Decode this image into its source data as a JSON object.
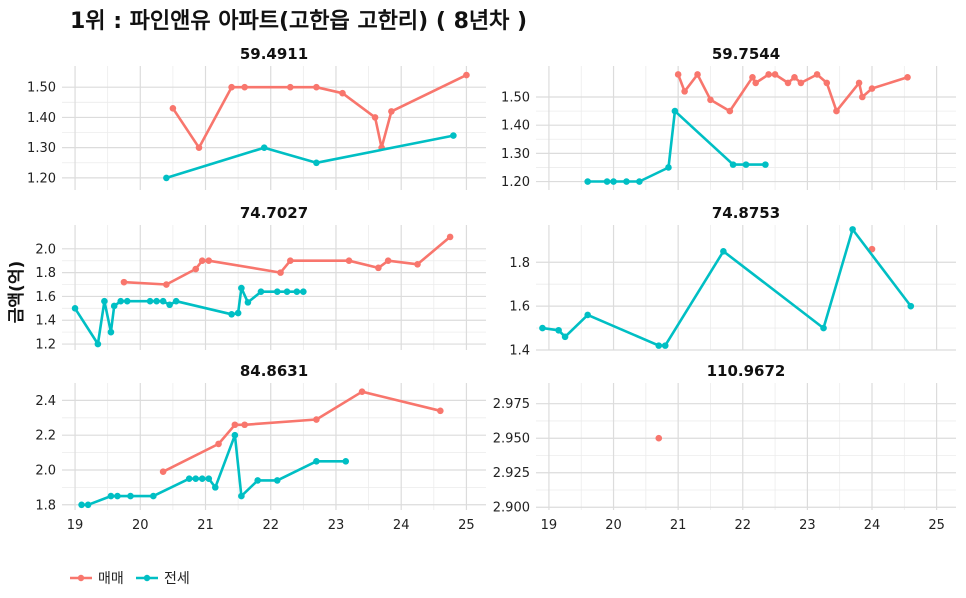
{
  "title": "1위 : 파인앤유 아파트(고한읍 고한리) ( 8년차 )",
  "ylabel": "금액(억)",
  "legend": [
    {
      "label": "매매",
      "color": "#F8766D"
    },
    {
      "label": "전세",
      "color": "#00BFC4"
    }
  ],
  "chart_data": {
    "type": "line",
    "x_range": [
      18.8,
      25.3
    ],
    "x_ticks": [
      19,
      20,
      21,
      22,
      23,
      24,
      25
    ],
    "panels": [
      {
        "title": "59.4911",
        "y_range": [
          1.16,
          1.57
        ],
        "y_ticks": [
          1.2,
          1.3,
          1.4,
          1.5
        ],
        "y_tick_labels": [
          "1.20",
          "1.30",
          "1.40",
          "1.50"
        ],
        "show_x_ticks": false,
        "series": [
          {
            "name": "매매",
            "points": [
              [
                20.5,
                1.43
              ],
              [
                20.9,
                1.3
              ],
              [
                21.4,
                1.5
              ],
              [
                21.6,
                1.5
              ],
              [
                22.3,
                1.5
              ],
              [
                22.7,
                1.5
              ],
              [
                23.1,
                1.48
              ],
              [
                23.6,
                1.4
              ],
              [
                23.7,
                1.3
              ],
              [
                23.85,
                1.42
              ],
              [
                25.0,
                1.54
              ]
            ]
          },
          {
            "name": "전세",
            "points": [
              [
                20.4,
                1.2
              ],
              [
                21.9,
                1.3
              ],
              [
                22.7,
                1.25
              ],
              [
                24.8,
                1.34
              ]
            ]
          }
        ]
      },
      {
        "title": "59.7544",
        "y_range": [
          1.17,
          1.61
        ],
        "y_ticks": [
          1.2,
          1.3,
          1.4,
          1.5
        ],
        "y_tick_labels": [
          "1.20",
          "1.30",
          "1.40",
          "1.50"
        ],
        "show_x_ticks": false,
        "series": [
          {
            "name": "매매",
            "points": [
              [
                21.0,
                1.58
              ],
              [
                21.1,
                1.52
              ],
              [
                21.3,
                1.58
              ],
              [
                21.5,
                1.49
              ],
              [
                21.8,
                1.45
              ],
              [
                22.15,
                1.57
              ],
              [
                22.2,
                1.55
              ],
              [
                22.4,
                1.58
              ],
              [
                22.5,
                1.58
              ],
              [
                22.7,
                1.55
              ],
              [
                22.8,
                1.57
              ],
              [
                22.9,
                1.55
              ],
              [
                23.15,
                1.58
              ],
              [
                23.3,
                1.55
              ],
              [
                23.45,
                1.45
              ],
              [
                23.8,
                1.55
              ],
              [
                23.85,
                1.5
              ],
              [
                24.0,
                1.53
              ],
              [
                24.55,
                1.57
              ]
            ]
          },
          {
            "name": "전세",
            "points": [
              [
                19.6,
                1.2
              ],
              [
                19.9,
                1.2
              ],
              [
                20.0,
                1.2
              ],
              [
                20.2,
                1.2
              ],
              [
                20.4,
                1.2
              ],
              [
                20.85,
                1.25
              ],
              [
                20.95,
                1.45
              ],
              [
                21.85,
                1.26
              ],
              [
                22.05,
                1.26
              ],
              [
                22.35,
                1.26
              ]
            ]
          }
        ]
      },
      {
        "title": "74.7027",
        "y_range": [
          1.15,
          2.2
        ],
        "y_ticks": [
          1.2,
          1.4,
          1.6,
          1.8,
          2.0
        ],
        "y_tick_labels": [
          "1.2",
          "1.4",
          "1.6",
          "1.8",
          "2.0"
        ],
        "show_x_ticks": false,
        "series": [
          {
            "name": "매매",
            "points": [
              [
                19.75,
                1.72
              ],
              [
                20.4,
                1.7
              ],
              [
                20.85,
                1.83
              ],
              [
                20.95,
                1.9
              ],
              [
                21.05,
                1.9
              ],
              [
                22.15,
                1.8
              ],
              [
                22.3,
                1.9
              ],
              [
                23.2,
                1.9
              ],
              [
                23.65,
                1.84
              ],
              [
                23.8,
                1.9
              ],
              [
                24.25,
                1.87
              ],
              [
                24.75,
                2.1
              ]
            ]
          },
          {
            "name": "전세",
            "points": [
              [
                19.0,
                1.5
              ],
              [
                19.35,
                1.2
              ],
              [
                19.45,
                1.56
              ],
              [
                19.55,
                1.3
              ],
              [
                19.6,
                1.52
              ],
              [
                19.7,
                1.56
              ],
              [
                19.8,
                1.56
              ],
              [
                20.15,
                1.56
              ],
              [
                20.25,
                1.56
              ],
              [
                20.35,
                1.56
              ],
              [
                20.45,
                1.53
              ],
              [
                20.55,
                1.56
              ],
              [
                21.4,
                1.45
              ],
              [
                21.5,
                1.46
              ],
              [
                21.55,
                1.67
              ],
              [
                21.65,
                1.55
              ],
              [
                21.85,
                1.64
              ],
              [
                22.1,
                1.64
              ],
              [
                22.25,
                1.64
              ],
              [
                22.4,
                1.64
              ],
              [
                22.5,
                1.64
              ]
            ]
          }
        ]
      },
      {
        "title": "74.8753",
        "y_range": [
          1.4,
          1.97
        ],
        "y_ticks": [
          1.4,
          1.6,
          1.8
        ],
        "y_tick_labels": [
          "1.4",
          "1.6",
          "1.8"
        ],
        "show_x_ticks": false,
        "series": [
          {
            "name": "매매",
            "points": [
              [
                24.0,
                1.86
              ]
            ]
          },
          {
            "name": "전세",
            "points": [
              [
                18.9,
                1.5
              ],
              [
                19.15,
                1.49
              ],
              [
                19.25,
                1.46
              ],
              [
                19.6,
                1.56
              ],
              [
                20.7,
                1.42
              ],
              [
                20.8,
                1.42
              ],
              [
                21.7,
                1.85
              ],
              [
                23.25,
                1.5
              ],
              [
                23.7,
                1.95
              ],
              [
                24.6,
                1.6
              ]
            ]
          }
        ]
      },
      {
        "title": "84.8631",
        "y_range": [
          1.77,
          2.5
        ],
        "y_ticks": [
          1.8,
          2.0,
          2.2,
          2.4
        ],
        "y_tick_labels": [
          "1.8",
          "2.0",
          "2.2",
          "2.4"
        ],
        "show_x_ticks": true,
        "series": [
          {
            "name": "매매",
            "points": [
              [
                20.35,
                1.99
              ],
              [
                21.2,
                2.15
              ],
              [
                21.45,
                2.26
              ],
              [
                21.6,
                2.26
              ],
              [
                22.7,
                2.29
              ],
              [
                23.4,
                2.45
              ],
              [
                24.6,
                2.34
              ]
            ]
          },
          {
            "name": "전세",
            "points": [
              [
                19.1,
                1.8
              ],
              [
                19.2,
                1.8
              ],
              [
                19.55,
                1.85
              ],
              [
                19.65,
                1.85
              ],
              [
                19.85,
                1.85
              ],
              [
                20.2,
                1.85
              ],
              [
                20.75,
                1.95
              ],
              [
                20.85,
                1.95
              ],
              [
                20.95,
                1.95
              ],
              [
                21.05,
                1.95
              ],
              [
                21.15,
                1.9
              ],
              [
                21.45,
                2.2
              ],
              [
                21.55,
                1.85
              ],
              [
                21.8,
                1.94
              ],
              [
                22.1,
                1.94
              ],
              [
                22.7,
                2.05
              ],
              [
                23.15,
                2.05
              ]
            ]
          }
        ]
      },
      {
        "title": "110.9672",
        "y_range": [
          2.898,
          2.99
        ],
        "y_ticks": [
          2.9,
          2.925,
          2.95,
          2.975
        ],
        "y_tick_labels": [
          "2.900",
          "2.925",
          "2.950",
          "2.975"
        ],
        "show_x_ticks": true,
        "series": [
          {
            "name": "매매",
            "points": [
              [
                20.7,
                2.95
              ]
            ]
          }
        ]
      }
    ]
  }
}
